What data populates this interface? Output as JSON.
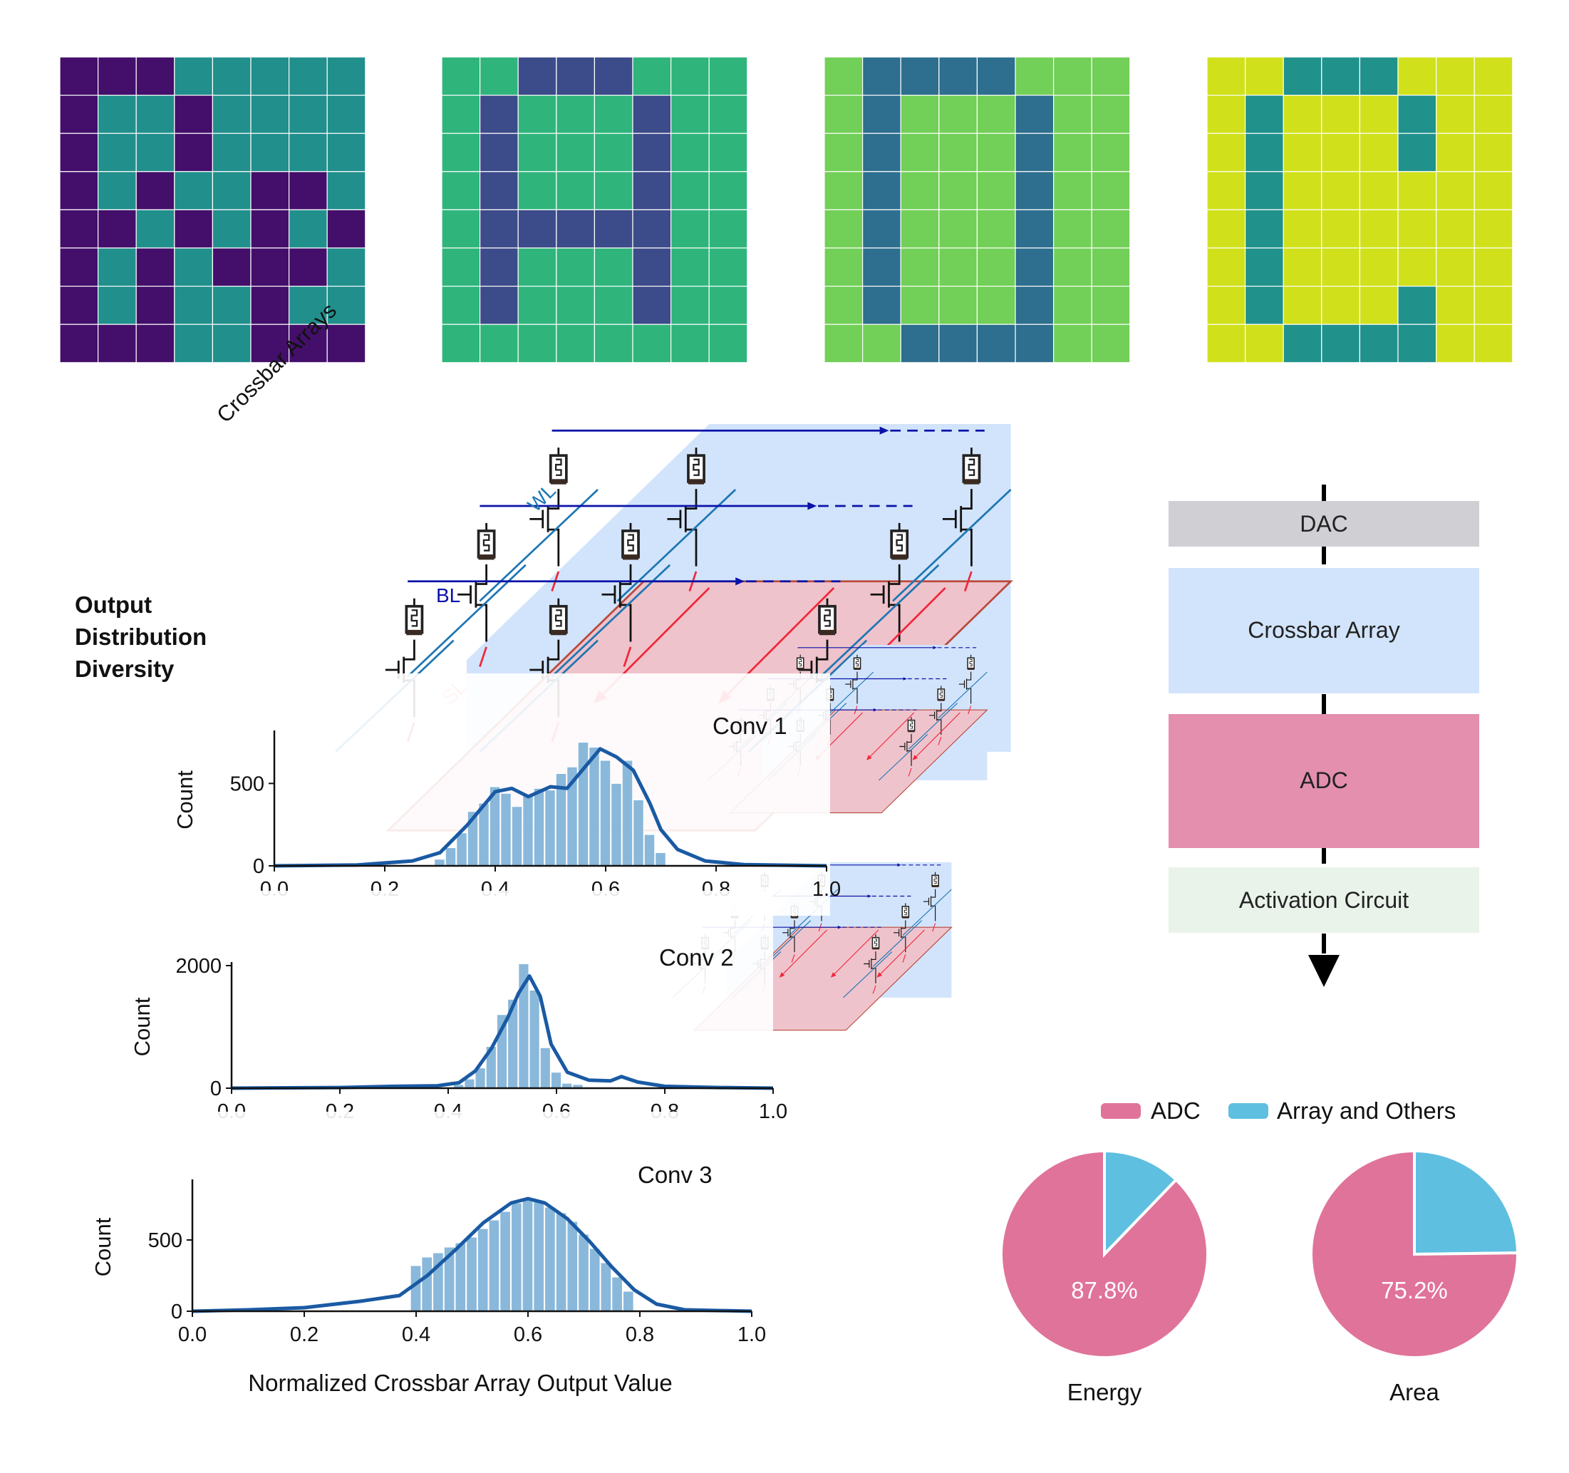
{
  "colors": {
    "grid_palettes": [
      [
        "#440f6b",
        "#218f8c"
      ],
      [
        "#2fb57c",
        "#3c4b89"
      ],
      [
        "#72cf57",
        "#2e6e8e"
      ],
      [
        "#d0e11c",
        "#21918c"
      ]
    ],
    "crossbar_plane": "#d2e4fb",
    "adc_plane": "#efc3cc",
    "adc_edge": "#b94a3c",
    "wl_line": "#1f77b4",
    "bl_line": "#0a12a8",
    "sl_line": "#f0283c",
    "hist_bar": "#8ab8db",
    "kde_line": "#1a5aa3",
    "pie_adc": "#e0739a",
    "pie_other": "#5fbfe0",
    "dac_block": "#cfcfd4",
    "crossbar_block": "#d2e4fb",
    "adc_block": "#e48fae",
    "activation_block": "#e9f3ea"
  },
  "pixel_grids": [
    {
      "name": "grid-1",
      "pattern": [
        "00011111",
        "01101111",
        "01101111",
        "01011001",
        "00101010",
        "01010001",
        "01011011",
        "00011000"
      ]
    },
    {
      "name": "grid-2",
      "pattern": [
        "00111000",
        "01000100",
        "01000100",
        "01000100",
        "01111100",
        "01000100",
        "01000100",
        "00000000"
      ]
    },
    {
      "name": "grid-3",
      "pattern": [
        "01111000",
        "01000100",
        "01000100",
        "01000100",
        "01000100",
        "01000100",
        "01000100",
        "00111100"
      ]
    },
    {
      "name": "grid-4",
      "pattern": [
        "00111000",
        "01000100",
        "01000100",
        "01000000",
        "01000000",
        "01000000",
        "01000100",
        "00111100"
      ]
    }
  ],
  "labels": {
    "crossbar_arrays": "Crossbar Arrays",
    "wl": "WL",
    "bl": "BL",
    "sl": "SL",
    "output_distribution_diversity": [
      "Output",
      "Distribution",
      "Diversity"
    ]
  },
  "chart_data": [
    {
      "type": "bar",
      "title": "Conv 1",
      "xlabel": "",
      "ylabel": "Count",
      "xlim": [
        0.0,
        1.0
      ],
      "ylim": [
        0,
        800
      ],
      "xticks": [
        "0.0",
        "0.2",
        "0.4",
        "0.6",
        "0.8",
        "1.0"
      ],
      "yticks": [
        "0",
        "500"
      ],
      "bins": [
        0.3,
        0.32,
        0.34,
        0.36,
        0.38,
        0.4,
        0.42,
        0.44,
        0.46,
        0.48,
        0.5,
        0.52,
        0.54,
        0.56,
        0.58,
        0.6,
        0.62,
        0.64,
        0.66,
        0.68,
        0.7
      ],
      "values": [
        40,
        110,
        200,
        330,
        380,
        480,
        440,
        360,
        430,
        470,
        460,
        560,
        600,
        750,
        720,
        640,
        500,
        640,
        400,
        190,
        80
      ],
      "kde": [
        [
          0,
          0
        ],
        [
          0.15,
          5
        ],
        [
          0.25,
          30
        ],
        [
          0.3,
          80
        ],
        [
          0.35,
          250
        ],
        [
          0.4,
          450
        ],
        [
          0.43,
          470
        ],
        [
          0.46,
          420
        ],
        [
          0.5,
          480
        ],
        [
          0.53,
          470
        ],
        [
          0.56,
          590
        ],
        [
          0.59,
          710
        ],
        [
          0.62,
          660
        ],
        [
          0.65,
          580
        ],
        [
          0.68,
          380
        ],
        [
          0.7,
          220
        ],
        [
          0.73,
          100
        ],
        [
          0.78,
          30
        ],
        [
          0.85,
          8
        ],
        [
          1.0,
          0
        ]
      ]
    },
    {
      "type": "bar",
      "title": "Conv 2",
      "xlabel": "",
      "ylabel": "Count",
      "xlim": [
        0.0,
        1.0
      ],
      "ylim": [
        0,
        2000
      ],
      "xticks": [
        "0.0",
        "0.2",
        "0.4",
        "0.6",
        "0.8",
        "1.0"
      ],
      "yticks": [
        "0",
        "2000"
      ],
      "bins": [
        0.42,
        0.44,
        0.46,
        0.48,
        0.5,
        0.52,
        0.54,
        0.56,
        0.58,
        0.6,
        0.62,
        0.64
      ],
      "values": [
        60,
        150,
        330,
        680,
        1200,
        1450,
        2030,
        1600,
        660,
        260,
        80,
        60
      ],
      "kde": [
        [
          0,
          0
        ],
        [
          0.2,
          10
        ],
        [
          0.3,
          30
        ],
        [
          0.38,
          40
        ],
        [
          0.42,
          90
        ],
        [
          0.45,
          280
        ],
        [
          0.48,
          650
        ],
        [
          0.51,
          1150
        ],
        [
          0.53,
          1550
        ],
        [
          0.55,
          1830
        ],
        [
          0.57,
          1500
        ],
        [
          0.59,
          720
        ],
        [
          0.62,
          260
        ],
        [
          0.66,
          130
        ],
        [
          0.7,
          120
        ],
        [
          0.72,
          190
        ],
        [
          0.75,
          100
        ],
        [
          0.8,
          30
        ],
        [
          0.9,
          10
        ],
        [
          1.0,
          0
        ]
      ]
    },
    {
      "type": "bar",
      "title": "Conv 3",
      "xlabel": "Normalized Crossbar Array Output Value",
      "ylabel": "Count",
      "xlim": [
        0.0,
        1.0
      ],
      "ylim": [
        0,
        900
      ],
      "xticks": [
        "0.0",
        "0.2",
        "0.4",
        "0.6",
        "0.8",
        "1.0"
      ],
      "yticks": [
        "0",
        "500"
      ],
      "bins": [
        0.4,
        0.42,
        0.44,
        0.46,
        0.48,
        0.5,
        0.52,
        0.54,
        0.56,
        0.58,
        0.6,
        0.62,
        0.64,
        0.66,
        0.68,
        0.7,
        0.72,
        0.74,
        0.76,
        0.78
      ],
      "values": [
        320,
        380,
        410,
        450,
        480,
        520,
        580,
        640,
        700,
        760,
        790,
        770,
        730,
        690,
        630,
        540,
        440,
        340,
        240,
        140
      ],
      "kde": [
        [
          0,
          0
        ],
        [
          0.1,
          10
        ],
        [
          0.2,
          25
        ],
        [
          0.3,
          70
        ],
        [
          0.37,
          110
        ],
        [
          0.42,
          250
        ],
        [
          0.47,
          430
        ],
        [
          0.52,
          620
        ],
        [
          0.57,
          760
        ],
        [
          0.6,
          790
        ],
        [
          0.63,
          760
        ],
        [
          0.67,
          650
        ],
        [
          0.71,
          490
        ],
        [
          0.75,
          310
        ],
        [
          0.79,
          150
        ],
        [
          0.83,
          50
        ],
        [
          0.88,
          10
        ],
        [
          1.0,
          0
        ]
      ]
    }
  ],
  "pipeline": {
    "dac": "DAC",
    "crossbar": "Crossbar Array",
    "adc": "ADC",
    "activation": "Activation Circuit"
  },
  "pies": {
    "legend": [
      "ADC",
      "Array and Others"
    ],
    "charts": [
      {
        "label": "Energy",
        "adc_percent": 87.8,
        "value_text": "87.8%"
      },
      {
        "label": "Area",
        "adc_percent": 75.2,
        "value_text": "75.2%"
      }
    ]
  }
}
